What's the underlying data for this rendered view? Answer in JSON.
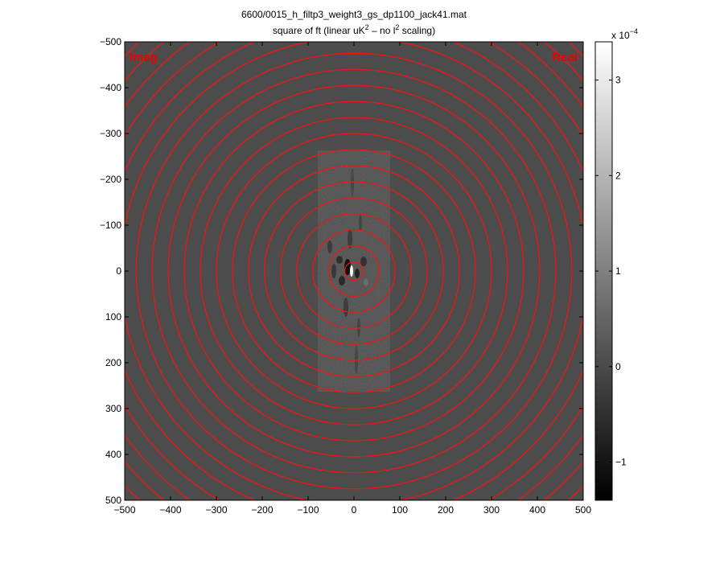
{
  "title_line1": "6600/0015_h_filtp3_weight3_gs_dp1100_jack41.mat",
  "title_line2_prefix": "square of ft (linear uK",
  "title_line2_sup1": "2",
  "title_line2_mid": " – no l",
  "title_line2_sup2": "2",
  "title_line2_suffix": " scaling)",
  "colorbar_multiplier_prefix": "x 10",
  "colorbar_multiplier_exponent": "−4",
  "corner_labels": {
    "left": "Imag",
    "right": "Real"
  },
  "colors": {
    "ring": "#ff1010",
    "corner_label": "#ee0000",
    "background_field": "#4d4d4d"
  },
  "chart_data": {
    "type": "heatmap",
    "colormap": "gray",
    "x_range": [
      -500,
      500
    ],
    "y_range": [
      -500,
      500
    ],
    "y_reversed": true,
    "x_ticks": [
      -500,
      -400,
      -300,
      -200,
      -100,
      0,
      100,
      200,
      300,
      400,
      500
    ],
    "x_tick_labels": [
      "−500",
      "−400",
      "−300",
      "−200",
      "−100",
      "0",
      "100",
      "200",
      "300",
      "400",
      "500"
    ],
    "y_ticks": [
      -500,
      -400,
      -300,
      -200,
      -100,
      0,
      100,
      200,
      300,
      400,
      500
    ],
    "y_tick_labels": [
      "−500",
      "−400",
      "−300",
      "−200",
      "−100",
      "0",
      "100",
      "200",
      "300",
      "400",
      "500"
    ],
    "ring_center": [
      0,
      0
    ],
    "ring_radii": [
      20,
      55,
      90,
      125,
      160,
      195,
      230,
      265,
      300,
      335,
      370,
      405,
      440,
      475,
      510,
      545,
      580,
      615,
      650,
      685
    ],
    "colorbar": {
      "range": [
        -1.4,
        3.4
      ],
      "ticks": [
        -1,
        0,
        1,
        2,
        3
      ],
      "tick_labels": [
        "−1",
        "0",
        "1",
        "2",
        "3"
      ],
      "scale_exponent": -4
    },
    "background_value": 0.0
  }
}
